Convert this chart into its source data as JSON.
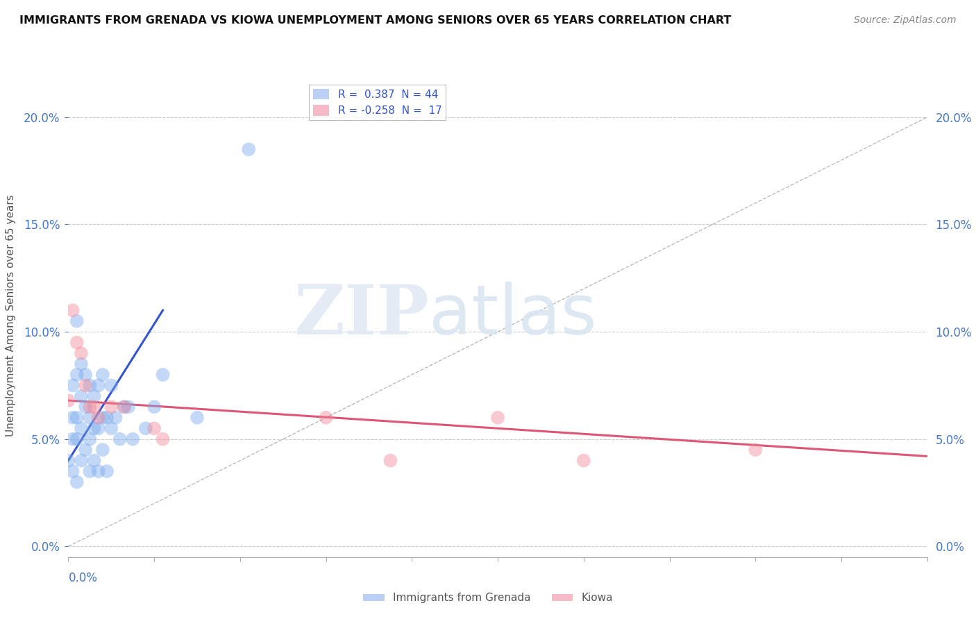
{
  "title": "IMMIGRANTS FROM GRENADA VS KIOWA UNEMPLOYMENT AMONG SENIORS OVER 65 YEARS CORRELATION CHART",
  "source": "Source: ZipAtlas.com",
  "ylabel": "Unemployment Among Seniors over 65 years",
  "xlim": [
    0,
    0.2
  ],
  "ylim": [
    -0.005,
    0.22
  ],
  "legend1_label": "R =  0.387  N = 44",
  "legend2_label": "R = -0.258  N =  17",
  "legend1_color": "#a8c4f0",
  "legend2_color": "#f5aabb",
  "series1_name": "Immigrants from Grenada",
  "series2_name": "Kiowa",
  "series1_color": "#7aaaee",
  "series2_color": "#f08898",
  "series1_scatter_x": [
    0.0,
    0.001,
    0.001,
    0.001,
    0.001,
    0.002,
    0.002,
    0.002,
    0.002,
    0.002,
    0.003,
    0.003,
    0.003,
    0.003,
    0.004,
    0.004,
    0.004,
    0.005,
    0.005,
    0.005,
    0.005,
    0.006,
    0.006,
    0.006,
    0.007,
    0.007,
    0.007,
    0.008,
    0.008,
    0.008,
    0.009,
    0.009,
    0.01,
    0.01,
    0.011,
    0.012,
    0.013,
    0.014,
    0.015,
    0.018,
    0.02,
    0.022,
    0.03,
    0.042
  ],
  "series1_scatter_y": [
    0.04,
    0.035,
    0.05,
    0.06,
    0.075,
    0.03,
    0.05,
    0.06,
    0.08,
    0.105,
    0.04,
    0.055,
    0.07,
    0.085,
    0.045,
    0.065,
    0.08,
    0.035,
    0.05,
    0.06,
    0.075,
    0.04,
    0.055,
    0.07,
    0.035,
    0.055,
    0.075,
    0.045,
    0.06,
    0.08,
    0.035,
    0.06,
    0.055,
    0.075,
    0.06,
    0.05,
    0.065,
    0.065,
    0.05,
    0.055,
    0.065,
    0.08,
    0.06,
    0.185
  ],
  "series2_scatter_x": [
    0.0,
    0.001,
    0.002,
    0.003,
    0.004,
    0.005,
    0.006,
    0.007,
    0.01,
    0.013,
    0.02,
    0.022,
    0.06,
    0.075,
    0.1,
    0.12,
    0.16
  ],
  "series2_scatter_y": [
    0.068,
    0.11,
    0.095,
    0.09,
    0.075,
    0.065,
    0.065,
    0.06,
    0.065,
    0.065,
    0.055,
    0.05,
    0.06,
    0.04,
    0.06,
    0.04,
    0.045
  ],
  "trend1_x": [
    0.0,
    0.022
  ],
  "trend1_y": [
    0.04,
    0.11
  ],
  "trend2_x": [
    0.0,
    0.2
  ],
  "trend2_y": [
    0.068,
    0.042
  ],
  "diag_line_x": [
    0.0,
    0.2
  ],
  "diag_line_y": [
    0.0,
    0.2
  ],
  "background_color": "#ffffff",
  "grid_color": "#cccccc",
  "yticks": [
    0.0,
    0.05,
    0.1,
    0.15,
    0.2
  ],
  "xticks": [
    0.0,
    0.02,
    0.04,
    0.06,
    0.08,
    0.1,
    0.12,
    0.14,
    0.16,
    0.18,
    0.2
  ]
}
